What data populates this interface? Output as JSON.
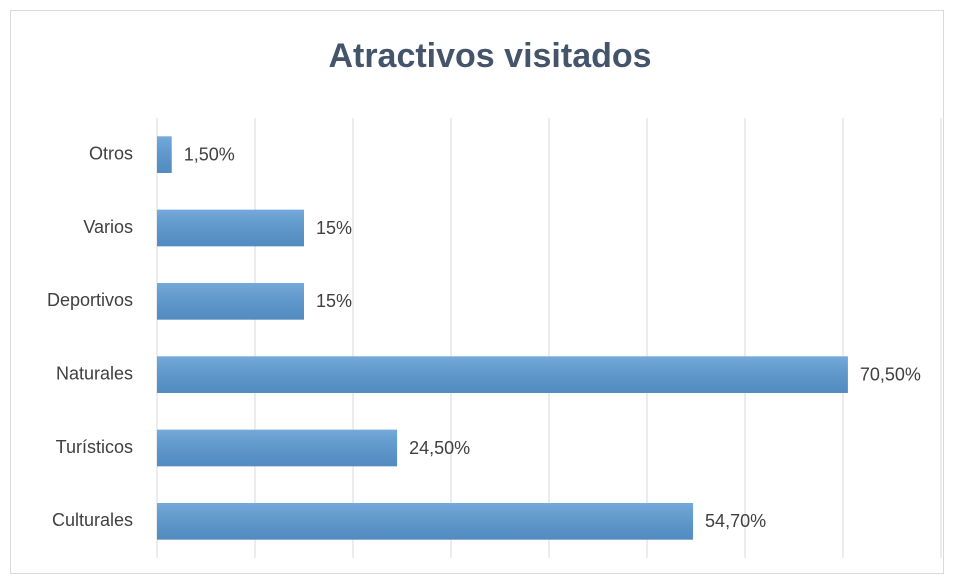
{
  "chart_data": {
    "type": "bar",
    "orientation": "horizontal",
    "title": "Atractivos visitados",
    "categories": [
      "Otros",
      "Varios",
      "Deportivos",
      "Naturales",
      "Turísticos",
      "Culturales"
    ],
    "values": [
      1.5,
      15,
      15,
      70.5,
      24.5,
      54.7
    ],
    "value_labels": [
      "1,50%",
      "15%",
      "15%",
      "70,50%",
      "24,50%",
      "54,70%"
    ],
    "color": "#5b9bd5",
    "xlim": [
      0,
      80
    ],
    "xticks": [
      0,
      10,
      20,
      30,
      40,
      50,
      60,
      70,
      80
    ],
    "grid": true
  }
}
